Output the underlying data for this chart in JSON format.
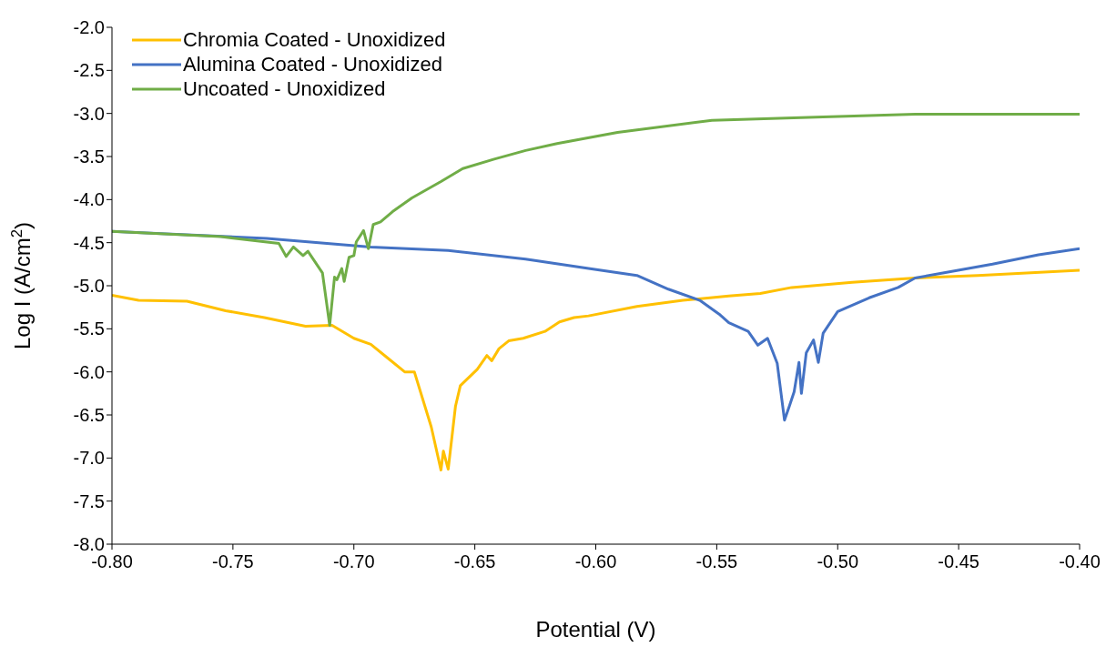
{
  "chart_data": {
    "type": "line",
    "xlabel": "Potential (V)",
    "ylabel": "Log I (A/cm$^{2}$)",
    "xlim": [
      -0.8,
      -0.4
    ],
    "xticks": [
      {
        "value": -0.8,
        "label": "-0.80"
      },
      {
        "value": -0.75,
        "label": "-0.75"
      },
      {
        "value": -0.7,
        "label": "-0.70"
      },
      {
        "value": -0.65,
        "label": "-0.65"
      },
      {
        "value": -0.6,
        "label": "-0.60"
      },
      {
        "value": -0.55,
        "label": "-0.55"
      },
      {
        "value": -0.5,
        "label": "-0.50"
      },
      {
        "value": -0.45,
        "label": "-0.45"
      },
      {
        "value": -0.4,
        "label": "-0.40"
      }
    ],
    "ylim": [
      -8,
      -2
    ],
    "yticks": [
      {
        "value": -2,
        "label": "-2.0"
      },
      {
        "value": -2.5,
        "label": "-2.5"
      },
      {
        "value": -3,
        "label": "-3.0"
      },
      {
        "value": -3.5,
        "label": "-3.5"
      },
      {
        "value": -4,
        "label": "-4.0"
      },
      {
        "value": -4.5,
        "label": "-4.5"
      },
      {
        "value": -5,
        "label": "-5.0"
      },
      {
        "value": -5.5,
        "label": "-5.5"
      },
      {
        "value": -6,
        "label": "-6.0"
      },
      {
        "value": -6.5,
        "label": "-6.5"
      },
      {
        "value": -7,
        "label": "-7.0"
      },
      {
        "value": -7.5,
        "label": "-7.5"
      },
      {
        "value": -8,
        "label": "-8.0"
      }
    ],
    "grid": false,
    "legend": "top left",
    "marker": "none",
    "line_style": "solid",
    "series": [
      {
        "name": "Chromia Coated - Unoxidized",
        "color": "#ffc000",
        "x": [
          -0.8,
          -0.789,
          -0.769,
          -0.753,
          -0.737,
          -0.72,
          -0.709,
          -0.7,
          -0.693,
          -0.686,
          -0.679,
          -0.675,
          -0.668,
          -0.664,
          -0.663,
          -0.661,
          -0.658,
          -0.656,
          -0.649,
          -0.645,
          -0.643,
          -0.64,
          -0.636,
          -0.63,
          -0.621,
          -0.615,
          -0.609,
          -0.603,
          -0.583,
          -0.564,
          -0.545,
          -0.532,
          -0.519,
          -0.494,
          -0.468,
          -0.442,
          -0.4
        ],
        "values": [
          -5.11,
          -5.17,
          -5.18,
          -5.29,
          -5.37,
          -5.47,
          -5.46,
          -5.61,
          -5.68,
          -5.84,
          -6.0,
          -6.0,
          -6.64,
          -7.14,
          -6.92,
          -7.13,
          -6.4,
          -6.16,
          -5.97,
          -5.81,
          -5.87,
          -5.73,
          -5.64,
          -5.61,
          -5.53,
          -5.42,
          -5.37,
          -5.35,
          -5.24,
          -5.17,
          -5.12,
          -5.09,
          -5.02,
          -4.96,
          -4.91,
          -4.88,
          -4.82
        ]
      },
      {
        "name": "Alumina Coated - Unoxidized",
        "color": "#4472c4",
        "x": [
          -0.8,
          -0.736,
          -0.693,
          -0.661,
          -0.629,
          -0.603,
          -0.583,
          -0.57,
          -0.557,
          -0.549,
          -0.545,
          -0.537,
          -0.533,
          -0.529,
          -0.525,
          -0.522,
          -0.52,
          -0.518,
          -0.516,
          -0.515,
          -0.513,
          -0.51,
          -0.508,
          -0.506,
          -0.5,
          -0.487,
          -0.475,
          -0.468,
          -0.456,
          -0.436,
          -0.417,
          -0.4
        ],
        "values": [
          -4.37,
          -4.45,
          -4.55,
          -4.59,
          -4.69,
          -4.8,
          -4.88,
          -5.04,
          -5.17,
          -5.33,
          -5.43,
          -5.53,
          -5.69,
          -5.61,
          -5.9,
          -6.56,
          -6.4,
          -6.23,
          -5.89,
          -6.25,
          -5.78,
          -5.63,
          -5.89,
          -5.55,
          -5.3,
          -5.14,
          -5.02,
          -4.91,
          -4.85,
          -4.75,
          -4.64,
          -4.57
        ]
      },
      {
        "name": "Uncoated - Unoxidized",
        "color": "#70ad47",
        "x": [
          -0.8,
          -0.755,
          -0.731,
          -0.728,
          -0.725,
          -0.721,
          -0.719,
          -0.713,
          -0.71,
          -0.708,
          -0.707,
          -0.705,
          -0.704,
          -0.702,
          -0.7,
          -0.699,
          -0.696,
          -0.694,
          -0.692,
          -0.689,
          -0.684,
          -0.676,
          -0.664,
          -0.655,
          -0.642,
          -0.629,
          -0.616,
          -0.591,
          -0.552,
          -0.506,
          -0.468,
          -0.4
        ],
        "values": [
          -4.37,
          -4.43,
          -4.51,
          -4.66,
          -4.55,
          -4.65,
          -4.6,
          -4.85,
          -5.46,
          -4.9,
          -4.93,
          -4.8,
          -4.95,
          -4.67,
          -4.65,
          -4.49,
          -4.36,
          -4.57,
          -4.29,
          -4.26,
          -4.14,
          -3.98,
          -3.79,
          -3.64,
          -3.53,
          -3.43,
          -3.35,
          -3.22,
          -3.08,
          -3.04,
          -3.01,
          -3.01
        ]
      }
    ]
  }
}
